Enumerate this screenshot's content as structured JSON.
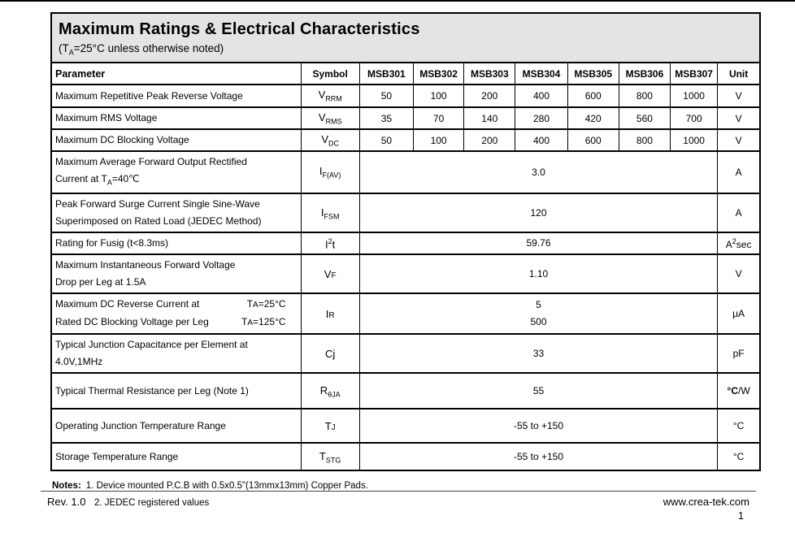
{
  "header": {
    "title": "Maximum Ratings & Electrical Characteristics",
    "subtitle_segments": [
      {
        "t": "(T"
      },
      {
        "t": "A",
        "s": "sub"
      },
      {
        "t": "=25°C unless otherwise noted)"
      }
    ]
  },
  "table": {
    "headers": [
      "Parameter",
      "Symbol",
      "MSB301",
      "MSB302",
      "MSB303",
      "MSB304",
      "MSB305",
      "MSB306",
      "MSB307",
      "Unit"
    ],
    "rows": [
      {
        "param_lines": [
          {
            "left": [
              {
                "t": "Maximum Repetitive Peak Reverse Voltage"
              }
            ]
          }
        ],
        "symbol": [
          {
            "t": "V"
          },
          {
            "t": "RRM",
            "s": "sub"
          }
        ],
        "values": [
          "50",
          "100",
          "200",
          "400",
          "600",
          "800",
          "1000"
        ],
        "unit": [
          {
            "t": "V"
          }
        ]
      },
      {
        "param_lines": [
          {
            "left": [
              {
                "t": "Maximum RMS Voltage"
              }
            ]
          }
        ],
        "symbol": [
          {
            "t": "V"
          },
          {
            "t": "RMS",
            "s": "sub"
          }
        ],
        "values": [
          "35",
          "70",
          "140",
          "280",
          "420",
          "560",
          "700"
        ],
        "unit": [
          {
            "t": "V"
          }
        ]
      },
      {
        "param_lines": [
          {
            "left": [
              {
                "t": "Maximum DC Blocking Voltage"
              }
            ]
          }
        ],
        "symbol": [
          {
            "t": "V"
          },
          {
            "t": "DC",
            "s": "sub"
          }
        ],
        "values": [
          "50",
          "100",
          "200",
          "400",
          "600",
          "800",
          "1000"
        ],
        "unit": [
          {
            "t": "V"
          }
        ]
      },
      {
        "param_lines": [
          {
            "left": [
              {
                "t": "Maximum Average Forward Output Rectified"
              }
            ]
          },
          {
            "left": [
              {
                "t": "Current at T"
              },
              {
                "t": "A",
                "s": "sub"
              },
              {
                "t": "=40℃"
              }
            ]
          }
        ],
        "symbol": [
          {
            "t": "I"
          },
          {
            "t": "F(AV)",
            "s": "sub"
          }
        ],
        "span_values": [
          "3.0"
        ],
        "unit": [
          {
            "t": "A"
          }
        ]
      },
      {
        "param_lines": [
          {
            "left": [
              {
                "t": "Peak Forward Surge Current Single Sine-Wave"
              }
            ]
          },
          {
            "left": [
              {
                "t": "Superimposed on Rated Load (JEDEC Method)"
              }
            ]
          }
        ],
        "symbol": [
          {
            "t": "I"
          },
          {
            "t": "FSM",
            "s": "sub"
          }
        ],
        "span_values": [
          "120"
        ],
        "unit": [
          {
            "t": "A"
          }
        ]
      },
      {
        "param_lines": [
          {
            "left": [
              {
                "t": "Rating for Fusig (t<8.3ms)"
              }
            ]
          }
        ],
        "symbol": [
          {
            "t": "I"
          },
          {
            "t": "2",
            "s": "sup"
          },
          {
            "t": "t"
          }
        ],
        "span_values": [
          "59.76"
        ],
        "unit": [
          {
            "t": "A"
          },
          {
            "t": "2",
            "s": "sup"
          },
          {
            "t": "sec"
          }
        ]
      },
      {
        "param_lines": [
          {
            "left": [
              {
                "t": "Maximum Instantaneous Forward Voltage"
              }
            ]
          },
          {
            "left": [
              {
                "t": "Drop per Leg at 1.5A"
              }
            ]
          }
        ],
        "symbol": [
          {
            "t": "V"
          },
          {
            "t": "F",
            "s": "small"
          }
        ],
        "span_values": [
          "1.10"
        ],
        "unit": [
          {
            "t": "V"
          }
        ]
      },
      {
        "param_lines": [
          {
            "left": [
              {
                "t": "Maximum DC Reverse Current at"
              }
            ],
            "right": [
              {
                "t": "T"
              },
              {
                "t": "A",
                "s": "small"
              },
              {
                "t": "=25°C"
              }
            ]
          },
          {
            "left": [
              {
                "t": "Rated DC Blocking Voltage per Leg"
              }
            ],
            "right": [
              {
                "t": "T"
              },
              {
                "t": "A",
                "s": "small"
              },
              {
                "t": "=125°C"
              }
            ]
          }
        ],
        "symbol": [
          {
            "t": "I"
          },
          {
            "t": "R",
            "s": "small"
          }
        ],
        "span_values": [
          "5",
          "500"
        ],
        "unit": [
          {
            "t": "μA"
          }
        ]
      },
      {
        "param_lines": [
          {
            "left": [
              {
                "t": "Typical Junction Capacitance per Element at 4.0V,1MHz"
              }
            ]
          }
        ],
        "symbol": [
          {
            "t": "Cj"
          }
        ],
        "span_values": [
          "33"
        ],
        "unit": [
          {
            "t": "pF"
          }
        ]
      },
      {
        "param_lines": [
          {
            "left": [
              {
                "t": "Typical Thermal Resistance per Leg (Note 1)"
              }
            ]
          }
        ],
        "symbol": [
          {
            "t": "R"
          },
          {
            "t": "θJA",
            "s": "sub"
          }
        ],
        "span_values": [
          "55"
        ],
        "unit": [
          {
            "t": "°C",
            "b": true
          },
          {
            "t": "/W"
          }
        ]
      },
      {
        "param_lines": [
          {
            "left": [
              {
                "t": "Operating Junction Temperature Range"
              }
            ]
          }
        ],
        "symbol": [
          {
            "t": "T"
          },
          {
            "t": "J",
            "s": "small"
          }
        ],
        "span_values": [
          "-55 to +150"
        ],
        "unit": [
          {
            "t": "°C"
          }
        ]
      },
      {
        "param_lines": [
          {
            "left": [
              {
                "t": "Storage Temperature Range"
              }
            ]
          }
        ],
        "symbol": [
          {
            "t": "T"
          },
          {
            "t": "STG",
            "s": "sub"
          }
        ],
        "span_values": [
          "-55 to +150"
        ],
        "unit": [
          {
            "t": "°C"
          }
        ]
      }
    ]
  },
  "notes": {
    "label": "Notes:",
    "items": [
      "1. Device mounted P.C.B with 0.5x0.5\"(13mmx13mm) Copper Pads.",
      "2. JEDEC registered values"
    ]
  },
  "footer": {
    "revision": "Rev. 1.0",
    "website": "www.crea-tek.com",
    "page_number": "1"
  }
}
